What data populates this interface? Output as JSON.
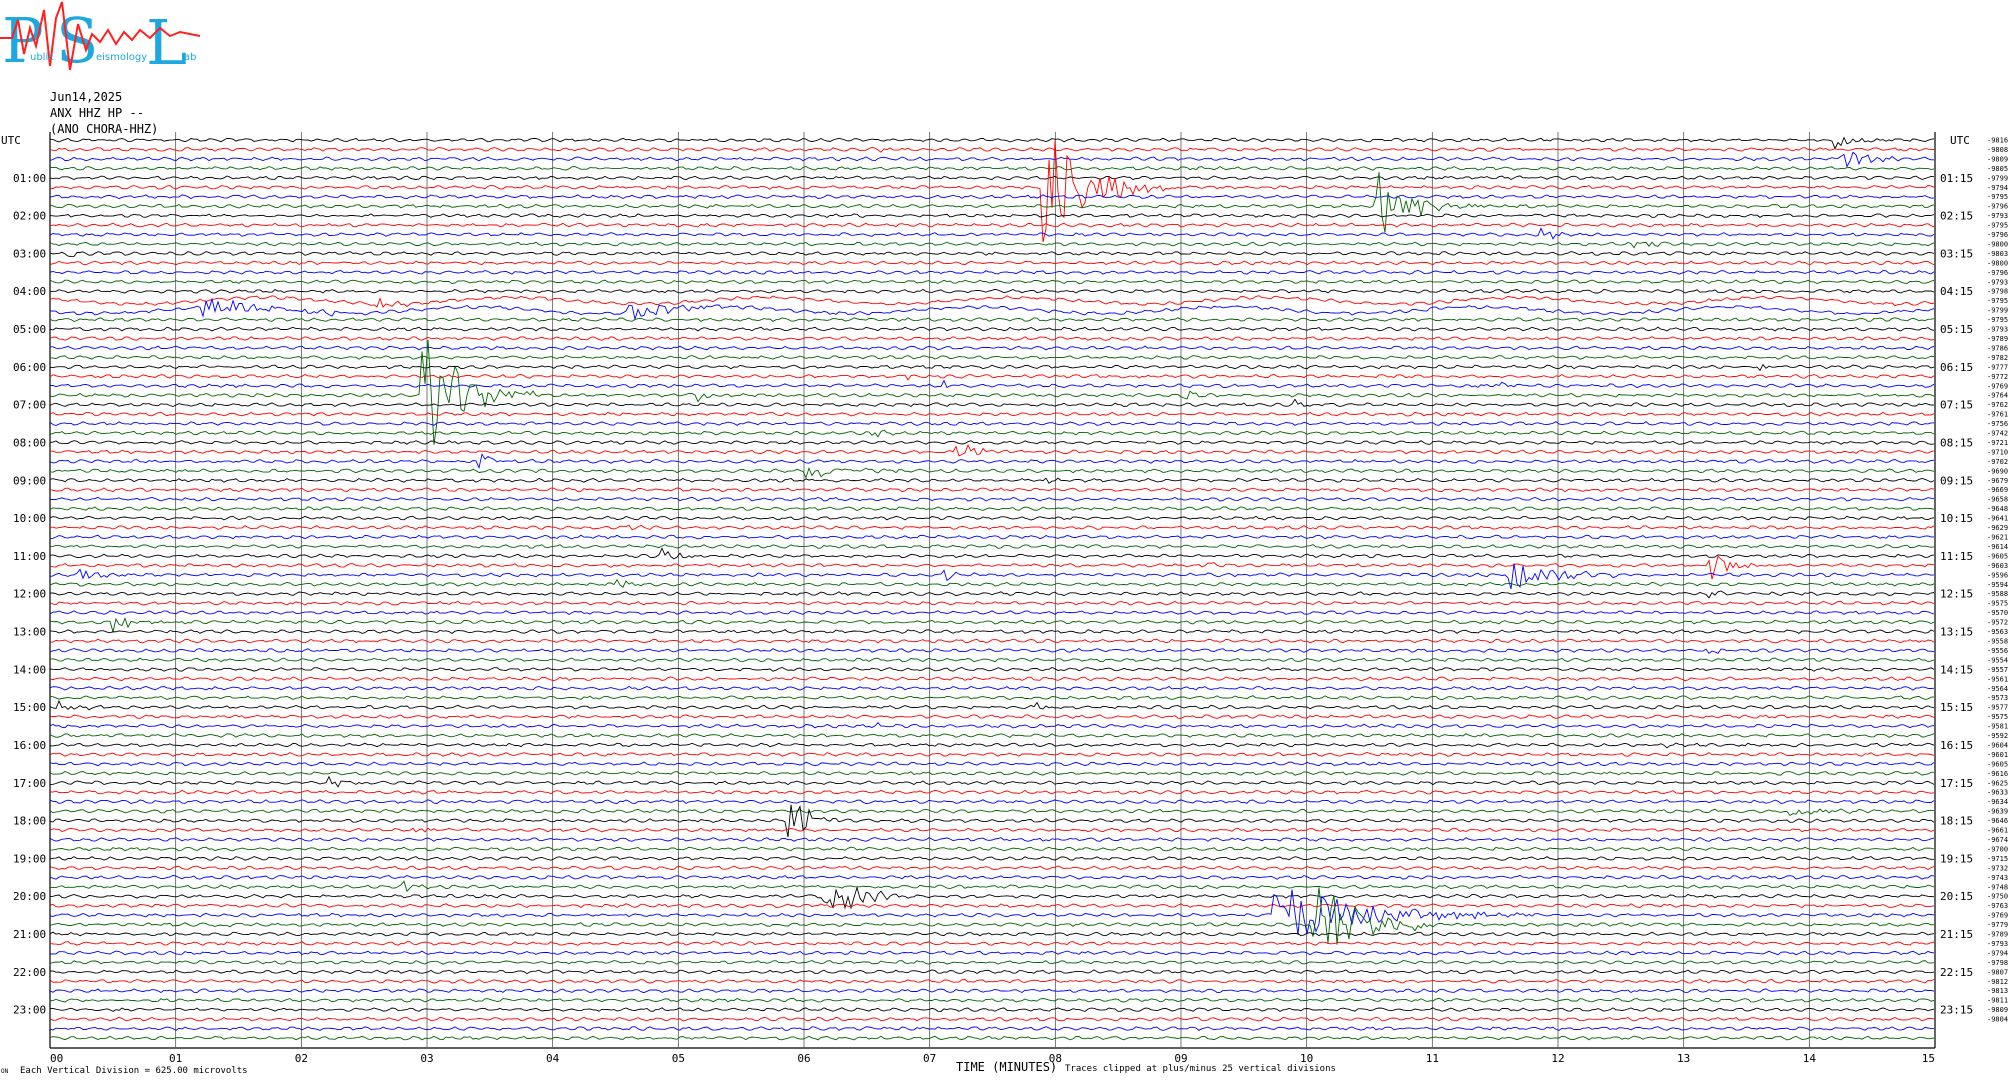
{
  "header": {
    "logo_letters": [
      "P",
      "S",
      "L"
    ],
    "logo_subtext": [
      "ublic",
      "eismology",
      "ab"
    ],
    "date": "Jun14,2025",
    "channel": "ANX HHZ HP --",
    "station": "(ANO CHORA-HHZ)"
  },
  "footer": {
    "left_mark": "ON",
    "vertical_division": "Each Vertical Division =  625.00 microvolts",
    "clip_note": "Traces clipped at plus/minus 25 vertical divisions"
  },
  "colors": {
    "trace_cycle": [
      "#000000",
      "#ff0000",
      "#0000ff",
      "#006400"
    ],
    "grid": "#555555",
    "logo_blue": "#1ea8e0",
    "logo_red": "#ff2020"
  },
  "chart_data": {
    "type": "line",
    "title": "",
    "xlabel": "TIME (MINUTES)",
    "ylabel": "UTC",
    "right_ylabel": "UTC",
    "xlim": [
      0,
      15
    ],
    "x_ticks": [
      "00",
      "01",
      "02",
      "03",
      "04",
      "05",
      "06",
      "07",
      "08",
      "09",
      "10",
      "11",
      "12",
      "13",
      "14",
      "15"
    ],
    "trace_count": 96,
    "minutes_per_trace": 15,
    "left_hour_labels": [
      "01:00",
      "02:00",
      "03:00",
      "04:00",
      "05:00",
      "06:00",
      "07:00",
      "08:00",
      "09:00",
      "10:00",
      "11:00",
      "12:00",
      "13:00",
      "14:00",
      "15:00",
      "16:00",
      "17:00",
      "18:00",
      "19:00",
      "20:00",
      "21:00",
      "22:00",
      "23:00"
    ],
    "right_hour_labels": [
      "01:15",
      "02:15",
      "03:15",
      "04:15",
      "05:15",
      "06:15",
      "07:15",
      "08:15",
      "09:15",
      "10:15",
      "11:15",
      "12:15",
      "13:15",
      "14:15",
      "15:15",
      "16:15",
      "17:15",
      "18:15",
      "19:15",
      "20:15",
      "21:15",
      "22:15",
      "23:15"
    ],
    "trace_offsets": [
      "-9816",
      "-9808",
      "-9809",
      "-9805",
      "-9799",
      "-9794",
      "-9795",
      "-9796",
      "-9793",
      "-9795",
      "-9796",
      "-9800",
      "-9803",
      "-9800",
      "-9796",
      "-9793",
      "-9798",
      "-9795",
      "-9799",
      "-9795",
      "-9793",
      "-9789",
      "-9786",
      "-9782",
      "-9777",
      "-9772",
      "-9769",
      "-9764",
      "-9762",
      "-9761",
      "-9756",
      "-9742",
      "-9721",
      "-9710",
      "-9702",
      "-9690",
      "-9679",
      "-9669",
      "-9658",
      "-9648",
      "-9641",
      "-9629",
      "-9621",
      "-9614",
      "-9605",
      "-9603",
      "-9596",
      "-9594",
      "-9588",
      "-9575",
      "-9570",
      "-9572",
      "-9563",
      "-9558",
      "-9556",
      "-9554",
      "-9557",
      "-9561",
      "-9564",
      "-9573",
      "-9577",
      "-9575",
      "-9581",
      "-9592",
      "-9604",
      "-9601",
      "-9605",
      "-9616",
      "-9625",
      "-9633",
      "-9634",
      "-9639",
      "-9646",
      "-9661",
      "-9674",
      "-9700",
      "-9715",
      "-9732",
      "-9743",
      "-9748",
      "-9750",
      "-9763",
      "-9769",
      "-9779",
      "-9789",
      "-9793",
      "-9794",
      "-9798",
      "-9807",
      "-9812",
      "-9813",
      "-9811",
      "-9809",
      "-9804"
    ],
    "events": [
      {
        "trace": 0,
        "x": 14.2,
        "amp": 1.1,
        "dur": 0.6
      },
      {
        "trace": 1,
        "x": 6.5,
        "amp": 0.5,
        "dur": 0.3
      },
      {
        "trace": 2,
        "x": 14.25,
        "amp": 2.2,
        "dur": 0.6
      },
      {
        "trace": 5,
        "x": 7.88,
        "amp": 9.0,
        "dur": 1.1
      },
      {
        "trace": 7,
        "x": 10.55,
        "amp": 4.6,
        "dur": 0.9
      },
      {
        "trace": 10,
        "x": 11.85,
        "amp": 0.9,
        "dur": 0.4
      },
      {
        "trace": 11,
        "x": 12.6,
        "amp": 0.9,
        "dur": 0.4
      },
      {
        "trace": 12,
        "x": 0.1,
        "amp": 0.8,
        "dur": 0.4
      },
      {
        "trace": 17,
        "x": 2.6,
        "amp": 0.6,
        "dur": 0.8
      },
      {
        "trace": 18,
        "x": 1.2,
        "amp": 1.2,
        "dur": 2.0
      },
      {
        "trace": 18,
        "x": 4.6,
        "amp": 1.0,
        "dur": 1.5
      },
      {
        "trace": 24,
        "x": 13.6,
        "amp": 0.6,
        "dur": 0.3
      },
      {
        "trace": 25,
        "x": 6.8,
        "amp": 0.8,
        "dur": 0.3
      },
      {
        "trace": 26,
        "x": 7.1,
        "amp": 0.6,
        "dur": 0.3
      },
      {
        "trace": 26,
        "x": 11.5,
        "amp": 0.6,
        "dur": 0.3
      },
      {
        "trace": 27,
        "x": 2.95,
        "amp": 9.0,
        "dur": 1.0
      },
      {
        "trace": 27,
        "x": 5.15,
        "amp": 0.8,
        "dur": 0.4
      },
      {
        "trace": 27,
        "x": 9.0,
        "amp": 0.9,
        "dur": 0.6
      },
      {
        "trace": 28,
        "x": 9.9,
        "amp": 0.6,
        "dur": 0.5
      },
      {
        "trace": 31,
        "x": 6.5,
        "amp": 0.6,
        "dur": 0.5
      },
      {
        "trace": 33,
        "x": 7.2,
        "amp": 1.3,
        "dur": 0.7
      },
      {
        "trace": 34,
        "x": 3.4,
        "amp": 1.3,
        "dur": 0.5
      },
      {
        "trace": 35,
        "x": 6.0,
        "amp": 1.0,
        "dur": 1.2
      },
      {
        "trace": 36,
        "x": 7.9,
        "amp": 0.5,
        "dur": 0.3
      },
      {
        "trace": 41,
        "x": 4.6,
        "amp": 0.6,
        "dur": 0.3
      },
      {
        "trace": 44,
        "x": 4.85,
        "amp": 1.0,
        "dur": 0.4
      },
      {
        "trace": 45,
        "x": 13.2,
        "amp": 2.1,
        "dur": 0.5
      },
      {
        "trace": 45,
        "x": 9.2,
        "amp": 0.5,
        "dur": 0.3
      },
      {
        "trace": 46,
        "x": 0.2,
        "amp": 1.1,
        "dur": 0.4
      },
      {
        "trace": 46,
        "x": 11.6,
        "amp": 2.2,
        "dur": 1.2
      },
      {
        "trace": 46,
        "x": 7.1,
        "amp": 0.9,
        "dur": 0.3
      },
      {
        "trace": 47,
        "x": 4.5,
        "amp": 0.6,
        "dur": 0.4
      },
      {
        "trace": 48,
        "x": 13.2,
        "amp": 0.8,
        "dur": 0.3
      },
      {
        "trace": 51,
        "x": 0.5,
        "amp": 1.2,
        "dur": 0.8
      },
      {
        "trace": 54,
        "x": 13.2,
        "amp": 0.6,
        "dur": 0.3
      },
      {
        "trace": 60,
        "x": 0.05,
        "amp": 1.2,
        "dur": 0.4
      },
      {
        "trace": 60,
        "x": 7.85,
        "amp": 0.8,
        "dur": 0.2
      },
      {
        "trace": 62,
        "x": 6.55,
        "amp": 0.6,
        "dur": 0.2
      },
      {
        "trace": 64,
        "x": 12.8,
        "amp": 0.8,
        "dur": 0.2
      },
      {
        "trace": 68,
        "x": 2.2,
        "amp": 0.6,
        "dur": 0.5
      },
      {
        "trace": 71,
        "x": 13.8,
        "amp": 1.2,
        "dur": 0.6
      },
      {
        "trace": 72,
        "x": 5.85,
        "amp": 3.5,
        "dur": 0.6
      },
      {
        "trace": 73,
        "x": 2.9,
        "amp": 0.6,
        "dur": 0.3
      },
      {
        "trace": 79,
        "x": 2.8,
        "amp": 0.8,
        "dur": 0.3
      },
      {
        "trace": 80,
        "x": 6.15,
        "amp": 3.2,
        "dur": 0.9
      },
      {
        "trace": 82,
        "x": 9.72,
        "amp": 4.0,
        "dur": 2.2
      },
      {
        "trace": 83,
        "x": 10.05,
        "amp": 6.0,
        "dur": 1.2
      },
      {
        "trace": 83,
        "x": 1.3,
        "amp": 0.6,
        "dur": 0.3
      }
    ]
  }
}
